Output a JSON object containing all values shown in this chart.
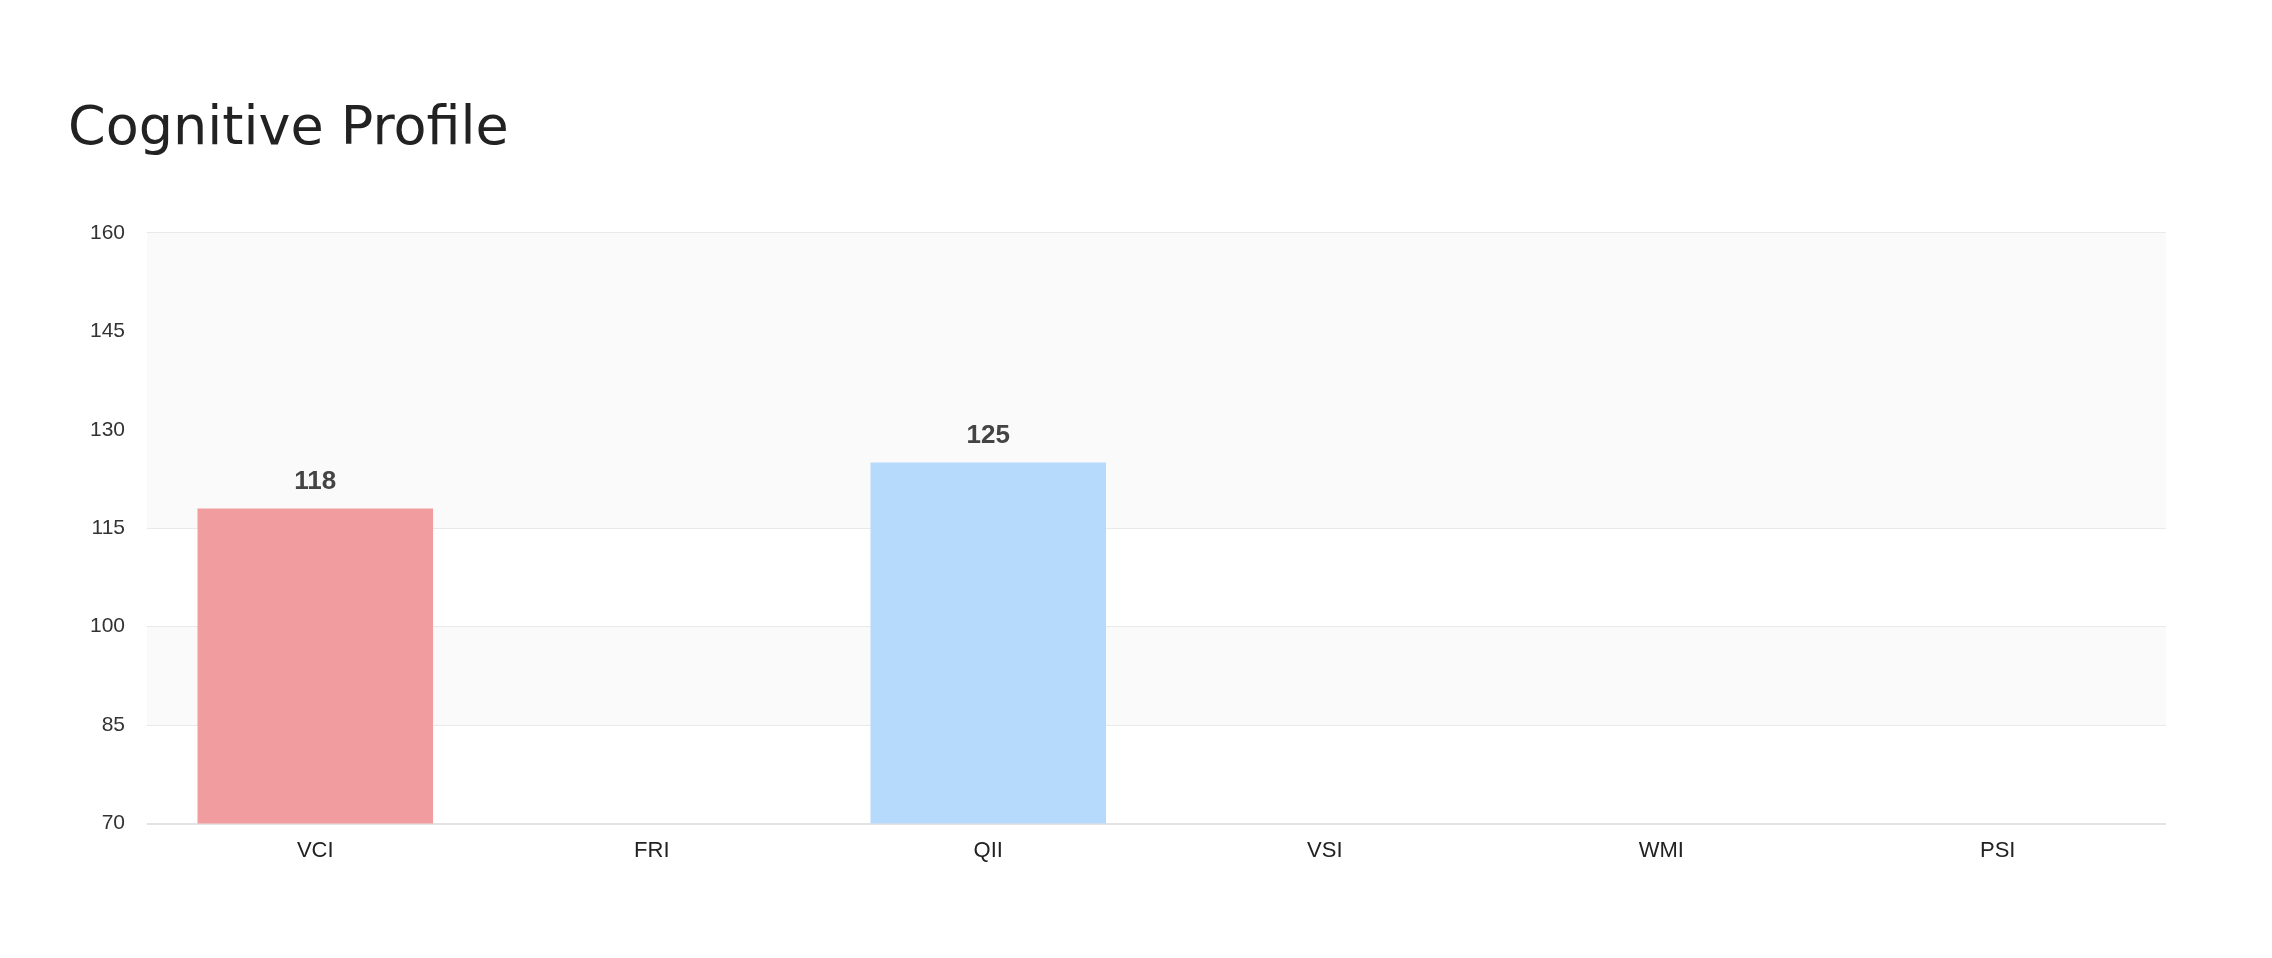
{
  "chart_data": {
    "type": "bar",
    "title": "Cognitive Profile",
    "categories": [
      "VCI",
      "FRI",
      "QII",
      "VSI",
      "WMI",
      "PSI"
    ],
    "values": [
      118,
      null,
      125,
      null,
      null,
      null
    ],
    "colors": [
      "#f19d9f",
      "#f19d9f",
      "#b6dafb",
      "#b6dafb",
      "#b6dafb",
      "#b6dafb"
    ],
    "ylim": [
      70,
      160
    ],
    "yticks": [
      70,
      85,
      100,
      115,
      130,
      145,
      160
    ],
    "grid": "y",
    "data_labels": true,
    "bands": [
      {
        "axis": "y",
        "from": 115,
        "to": 160,
        "color": "#fafafa"
      },
      {
        "axis": "y",
        "from": 85,
        "to": 100,
        "color": "#fafafa"
      }
    ]
  }
}
